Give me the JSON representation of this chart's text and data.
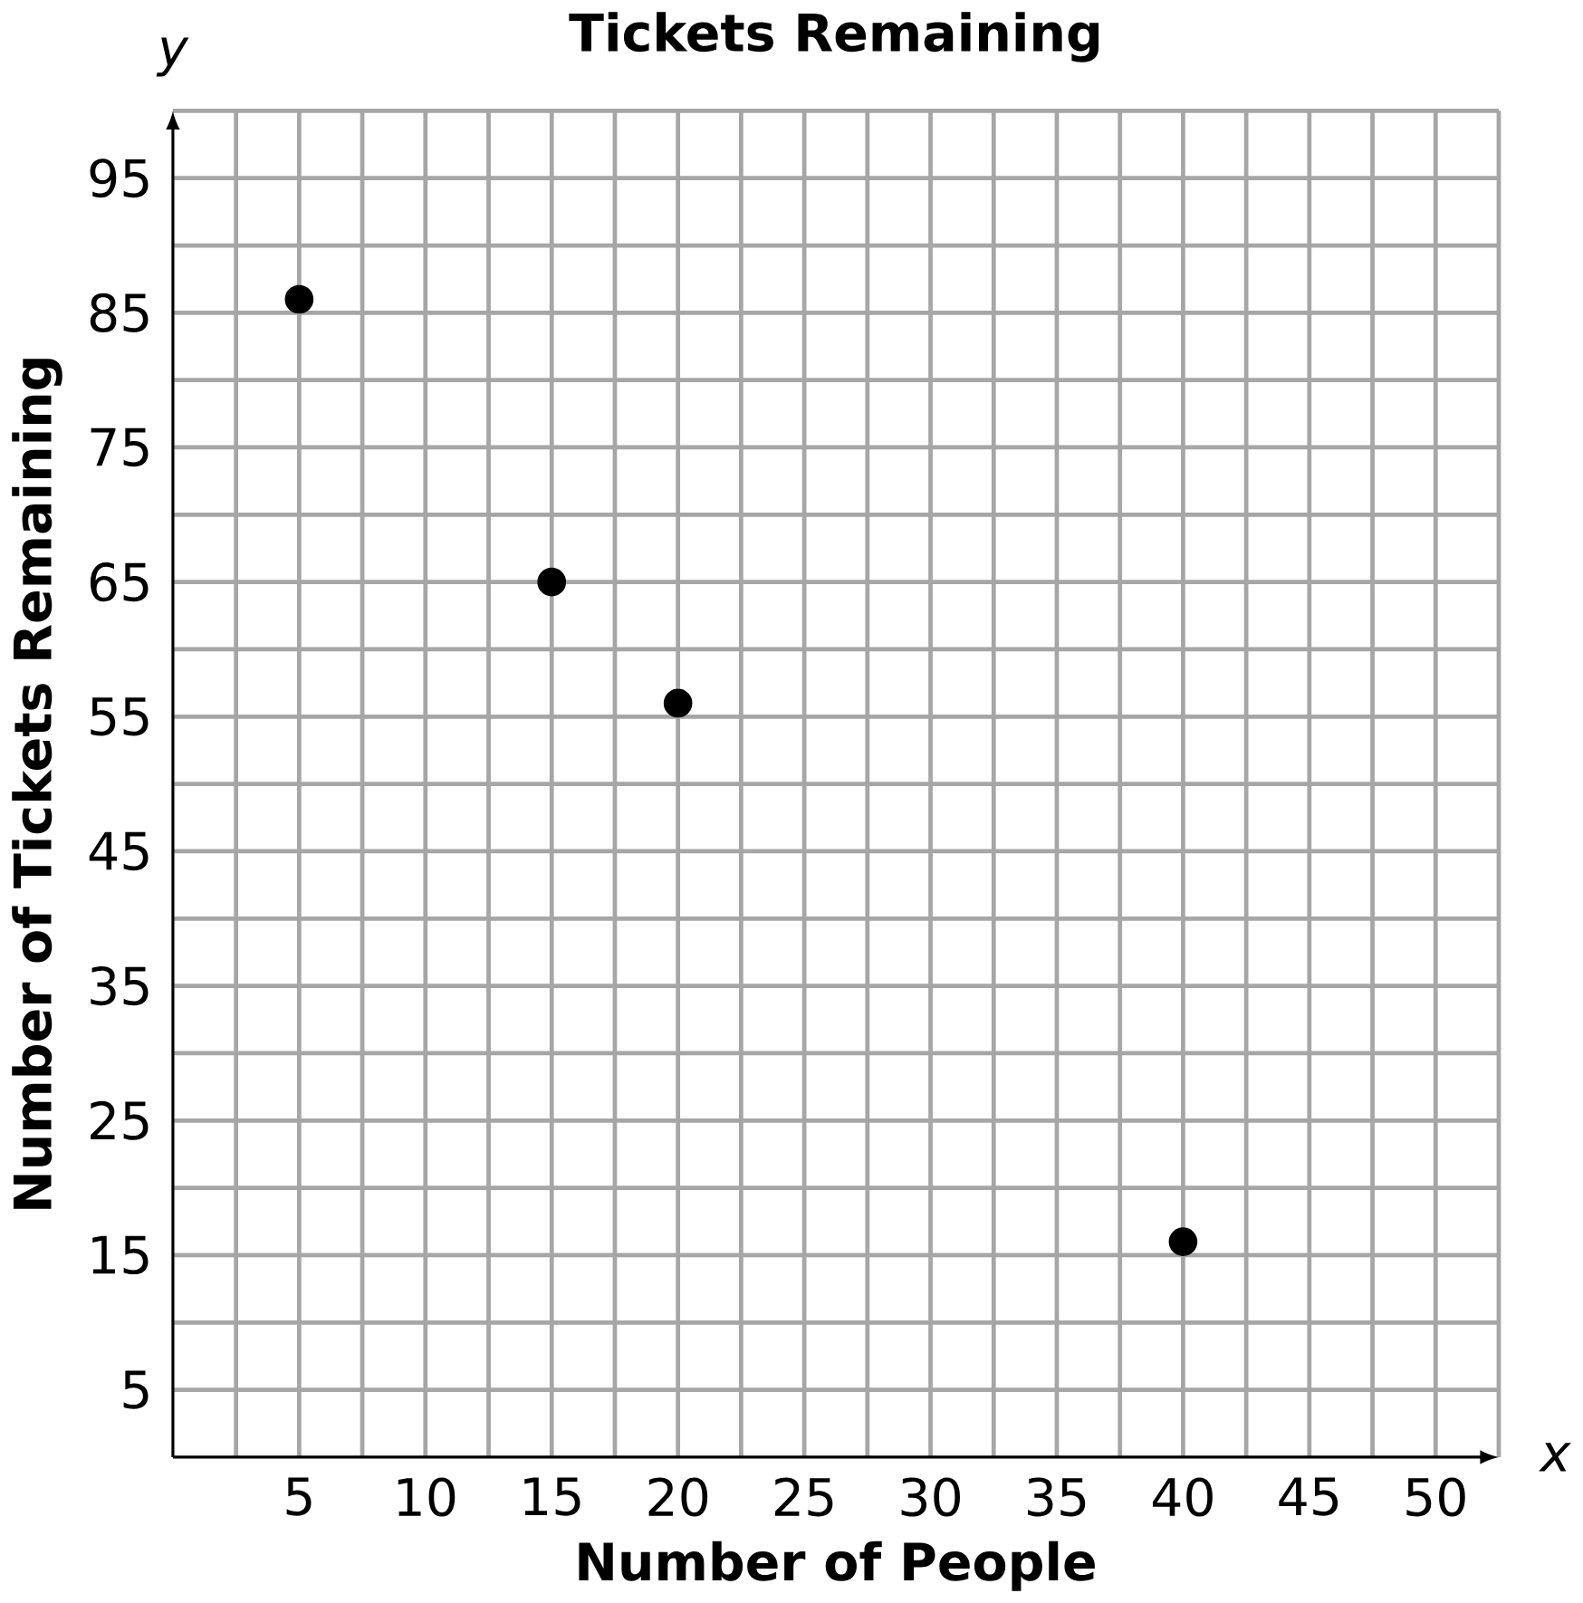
{
  "chart_data": {
    "type": "scatter",
    "title": "Tickets Remaining",
    "xlabel": "Number of People",
    "ylabel": "Number of Tickets Remaining",
    "annotations": [
      "x",
      "y"
    ],
    "x": [
      5,
      15,
      20,
      40
    ],
    "series": [
      {
        "color": "#000000",
        "values": [
          86,
          65,
          56,
          16
        ]
      }
    ],
    "xlim": [
      0,
      52.5
    ],
    "ylim": [
      0,
      100
    ],
    "xticks": [
      {
        "value": 2.5,
        "label": null
      },
      5,
      {
        "value": 7.5,
        "label": null
      },
      10,
      {
        "value": 12.5,
        "label": null
      },
      15,
      {
        "value": 17.5,
        "label": null
      },
      20,
      {
        "value": 22.5,
        "label": null
      },
      25,
      {
        "value": 27.5,
        "label": null
      },
      30,
      {
        "value": 32.5,
        "label": null
      },
      35,
      {
        "value": 37.5,
        "label": null
      },
      40,
      {
        "value": 42.5,
        "label": null
      },
      45,
      {
        "value": 47.5,
        "label": null
      },
      50,
      {
        "value": 52.5,
        "label": null
      }
    ],
    "yticks": [
      5,
      {
        "value": 10,
        "label": null
      },
      15,
      {
        "value": 20,
        "label": null
      },
      25,
      {
        "value": 30,
        "label": null
      },
      35,
      {
        "value": 40,
        "label": null
      },
      45,
      {
        "value": 50,
        "label": null
      },
      55,
      {
        "value": 60,
        "label": null
      },
      65,
      {
        "value": 70,
        "label": null
      },
      75,
      {
        "value": 80,
        "label": null
      },
      85,
      {
        "value": 90,
        "label": null
      },
      95,
      {
        "value": 100,
        "label": null
      }
    ],
    "grid": true
  }
}
